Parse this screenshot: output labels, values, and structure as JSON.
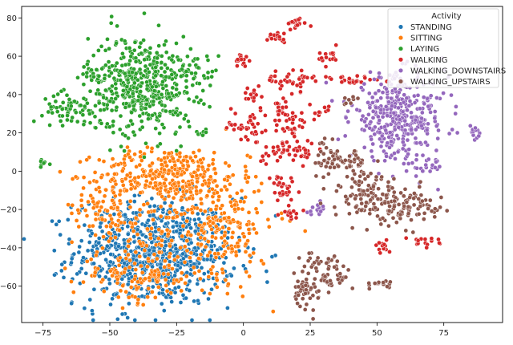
{
  "chart_data": {
    "type": "scatter",
    "title": "",
    "xlabel": "",
    "ylabel": "",
    "xlim": [
      -83,
      97
    ],
    "ylim": [
      -79,
      86
    ],
    "xticks": [
      -75,
      -50,
      -25,
      0,
      25,
      50,
      75
    ],
    "yticks": [
      -60,
      -40,
      -20,
      0,
      20,
      40,
      60,
      80
    ],
    "grid": false,
    "legend": {
      "title": "Activity",
      "placement": "top-right",
      "entries": [
        "STANDING",
        "SITTING",
        "LAYING",
        "WALKING",
        "WALKING_DOWNSTAIRS",
        "WALKING_UPSTAIRS"
      ]
    },
    "series": [
      {
        "name": "STANDING",
        "color": "#1f77b4",
        "clusters": [
          {
            "cx": -33,
            "cy": -42,
            "sx": 15,
            "sy": 14,
            "n": 800
          }
        ]
      },
      {
        "name": "SITTING",
        "color": "#ff7f0e",
        "clusters": [
          {
            "cx": -28,
            "cy": -2,
            "sx": 13,
            "sy": 7,
            "n": 320
          },
          {
            "cx": -52,
            "cy": -18,
            "sx": 6,
            "sy": 8,
            "n": 80
          },
          {
            "cx": -5,
            "cy": -28,
            "sx": 6,
            "sy": 14,
            "n": 110
          },
          {
            "cx": -40,
            "cy": -55,
            "sx": 12,
            "sy": 7,
            "n": 120
          },
          {
            "cx": -20,
            "cy": -30,
            "sx": 15,
            "sy": 15,
            "n": 200
          }
        ]
      },
      {
        "name": "LAYING",
        "color": "#2ca02c",
        "clusters": [
          {
            "cx": -38,
            "cy": 45,
            "sx": 10,
            "sy": 13,
            "n": 480
          },
          {
            "cx": -65,
            "cy": 33,
            "sx": 5,
            "sy": 4,
            "n": 60
          },
          {
            "cx": -55,
            "cy": 50,
            "sx": 3,
            "sy": 3,
            "n": 20
          },
          {
            "cx": -75,
            "cy": 4,
            "sx": 1.5,
            "sy": 1.2,
            "n": 7
          },
          {
            "cx": -15,
            "cy": 20,
            "sx": 1.5,
            "sy": 1.2,
            "n": 8
          },
          {
            "cx": -18,
            "cy": 52,
            "sx": 3,
            "sy": 5,
            "n": 25
          }
        ]
      },
      {
        "name": "WALKING",
        "color": "#d62728",
        "clusters": [
          {
            "cx": 20,
            "cy": 77,
            "sx": 2,
            "sy": 1.5,
            "n": 18
          },
          {
            "cx": 12,
            "cy": 70,
            "sx": 3,
            "sy": 1.5,
            "n": 18
          },
          {
            "cx": 0,
            "cy": 58,
            "sx": 1.5,
            "sy": 2,
            "n": 14
          },
          {
            "cx": 32,
            "cy": 60,
            "sx": 2,
            "sy": 2,
            "n": 15
          },
          {
            "cx": 20,
            "cy": 48,
            "sx": 3,
            "sy": 3,
            "n": 30
          },
          {
            "cx": 3,
            "cy": 40,
            "sx": 2,
            "sy": 2,
            "n": 14
          },
          {
            "cx": 11,
            "cy": 48,
            "sx": 1.5,
            "sy": 1.5,
            "n": 8
          },
          {
            "cx": 40,
            "cy": 47,
            "sx": 6,
            "sy": 1.5,
            "n": 25
          },
          {
            "cx": 14,
            "cy": 32,
            "sx": 3,
            "sy": 3,
            "n": 22
          },
          {
            "cx": 4,
            "cy": 23,
            "sx": 4,
            "sy": 6,
            "n": 35
          },
          {
            "cx": -4,
            "cy": 24,
            "sx": 1.2,
            "sy": 1.5,
            "n": 8
          },
          {
            "cx": 19,
            "cy": 23,
            "sx": 3,
            "sy": 3,
            "n": 22
          },
          {
            "cx": 28,
            "cy": 30,
            "sx": 2,
            "sy": 2,
            "n": 12
          },
          {
            "cx": 12,
            "cy": 10,
            "sx": 4,
            "sy": 3,
            "n": 25
          },
          {
            "cx": 22,
            "cy": 10,
            "sx": 4,
            "sy": 3,
            "n": 20
          },
          {
            "cx": 16,
            "cy": -10,
            "sx": 3,
            "sy": 3,
            "n": 22
          },
          {
            "cx": 18,
            "cy": -22,
            "sx": 2,
            "sy": 2,
            "n": 15
          },
          {
            "cx": 12,
            "cy": -4,
            "sx": 1.5,
            "sy": 1.5,
            "n": 8
          },
          {
            "cx": 52,
            "cy": -40,
            "sx": 1.5,
            "sy": 2,
            "n": 14
          },
          {
            "cx": 67,
            "cy": -37,
            "sx": 3,
            "sy": 1.2,
            "n": 16
          }
        ]
      },
      {
        "name": "WALKING_DOWNSTAIRS",
        "color": "#9467bd",
        "clusters": [
          {
            "cx": 58,
            "cy": 28,
            "sx": 9,
            "sy": 11,
            "n": 380
          },
          {
            "cx": 87,
            "cy": 20,
            "sx": 1.2,
            "sy": 2,
            "n": 14
          },
          {
            "cx": 28,
            "cy": -20,
            "sx": 2,
            "sy": 1.5,
            "n": 16
          },
          {
            "cx": 68,
            "cy": 2,
            "sx": 3,
            "sy": 2,
            "n": 20
          }
        ]
      },
      {
        "name": "WALKING_UPSTAIRS",
        "color": "#8c564b",
        "clusters": [
          {
            "cx": 37,
            "cy": 5,
            "sx": 5,
            "sy": 3,
            "n": 50
          },
          {
            "cx": 45,
            "cy": -10,
            "sx": 6,
            "sy": 6,
            "n": 80
          },
          {
            "cx": 58,
            "cy": -18,
            "sx": 7,
            "sy": 5,
            "n": 110
          },
          {
            "cx": 30,
            "cy": -50,
            "sx": 4,
            "sy": 4,
            "n": 40
          },
          {
            "cx": 23,
            "cy": -63,
            "sx": 3,
            "sy": 4,
            "n": 40
          },
          {
            "cx": 33,
            "cy": -57,
            "sx": 3,
            "sy": 2,
            "n": 25
          },
          {
            "cx": 52,
            "cy": -59,
            "sx": 2,
            "sy": 1.5,
            "n": 16
          },
          {
            "cx": 72,
            "cy": -20,
            "sx": 1,
            "sy": 1,
            "n": 5
          },
          {
            "cx": 30,
            "cy": 14,
            "sx": 2,
            "sy": 2,
            "n": 10
          },
          {
            "cx": 40,
            "cy": 36,
            "sx": 2,
            "sy": 2,
            "n": 8
          }
        ]
      }
    ]
  }
}
